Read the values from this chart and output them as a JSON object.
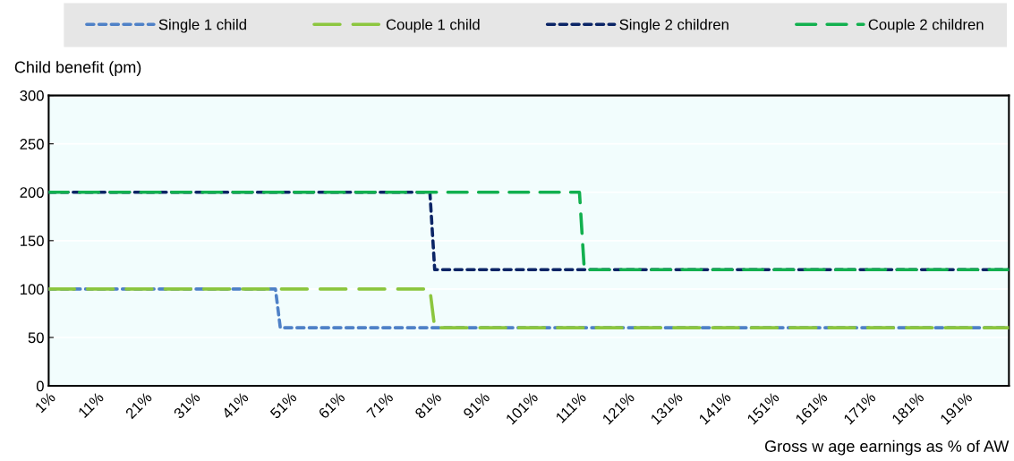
{
  "chart_data": {
    "type": "line",
    "xlabel": "Gross w age earnings as % of AW",
    "ylabel": "Child benefit (pm)",
    "series": [
      {
        "name": "Single 1 child",
        "color": "#4f81c7",
        "line_style": "dotted",
        "x": [
          1,
          48,
          49,
          200
        ],
        "values": [
          100,
          100,
          60,
          60
        ]
      },
      {
        "name": "Couple 1 child",
        "color": "#8cc63f",
        "line_style": "dashed",
        "x": [
          1,
          80,
          81,
          200
        ],
        "values": [
          100,
          100,
          60,
          60
        ]
      },
      {
        "name": "Single 2 children",
        "color": "#0b2566",
        "line_style": "dotted",
        "x": [
          1,
          80,
          81,
          200
        ],
        "values": [
          200,
          200,
          120,
          120
        ]
      },
      {
        "name": "Couple 2 children",
        "color": "#12b04f",
        "line_style": "dashed",
        "x": [
          1,
          111,
          112,
          200
        ],
        "values": [
          200,
          200,
          120,
          120
        ]
      }
    ],
    "xlim": [
      1,
      200
    ],
    "xticks": [
      {
        "value": 1,
        "label": "1%"
      },
      {
        "value": 11,
        "label": "11%"
      },
      {
        "value": 21,
        "label": "21%"
      },
      {
        "value": 31,
        "label": "31%"
      },
      {
        "value": 41,
        "label": "41%"
      },
      {
        "value": 51,
        "label": "51%"
      },
      {
        "value": 61,
        "label": "61%"
      },
      {
        "value": 71,
        "label": "71%"
      },
      {
        "value": 81,
        "label": "81%"
      },
      {
        "value": 91,
        "label": "91%"
      },
      {
        "value": 101,
        "label": "101%"
      },
      {
        "value": 111,
        "label": "111%"
      },
      {
        "value": 121,
        "label": "121%"
      },
      {
        "value": 131,
        "label": "131%"
      },
      {
        "value": 141,
        "label": "141%"
      },
      {
        "value": 151,
        "label": "151%"
      },
      {
        "value": 161,
        "label": "161%"
      },
      {
        "value": 171,
        "label": "171%"
      },
      {
        "value": 181,
        "label": "181%"
      },
      {
        "value": 191,
        "label": "191%"
      }
    ],
    "ylim": [
      0,
      300
    ],
    "yticks": [
      0,
      50,
      100,
      150,
      200,
      250,
      300
    ],
    "grid": "y",
    "legend": "top",
    "marker": "none"
  }
}
